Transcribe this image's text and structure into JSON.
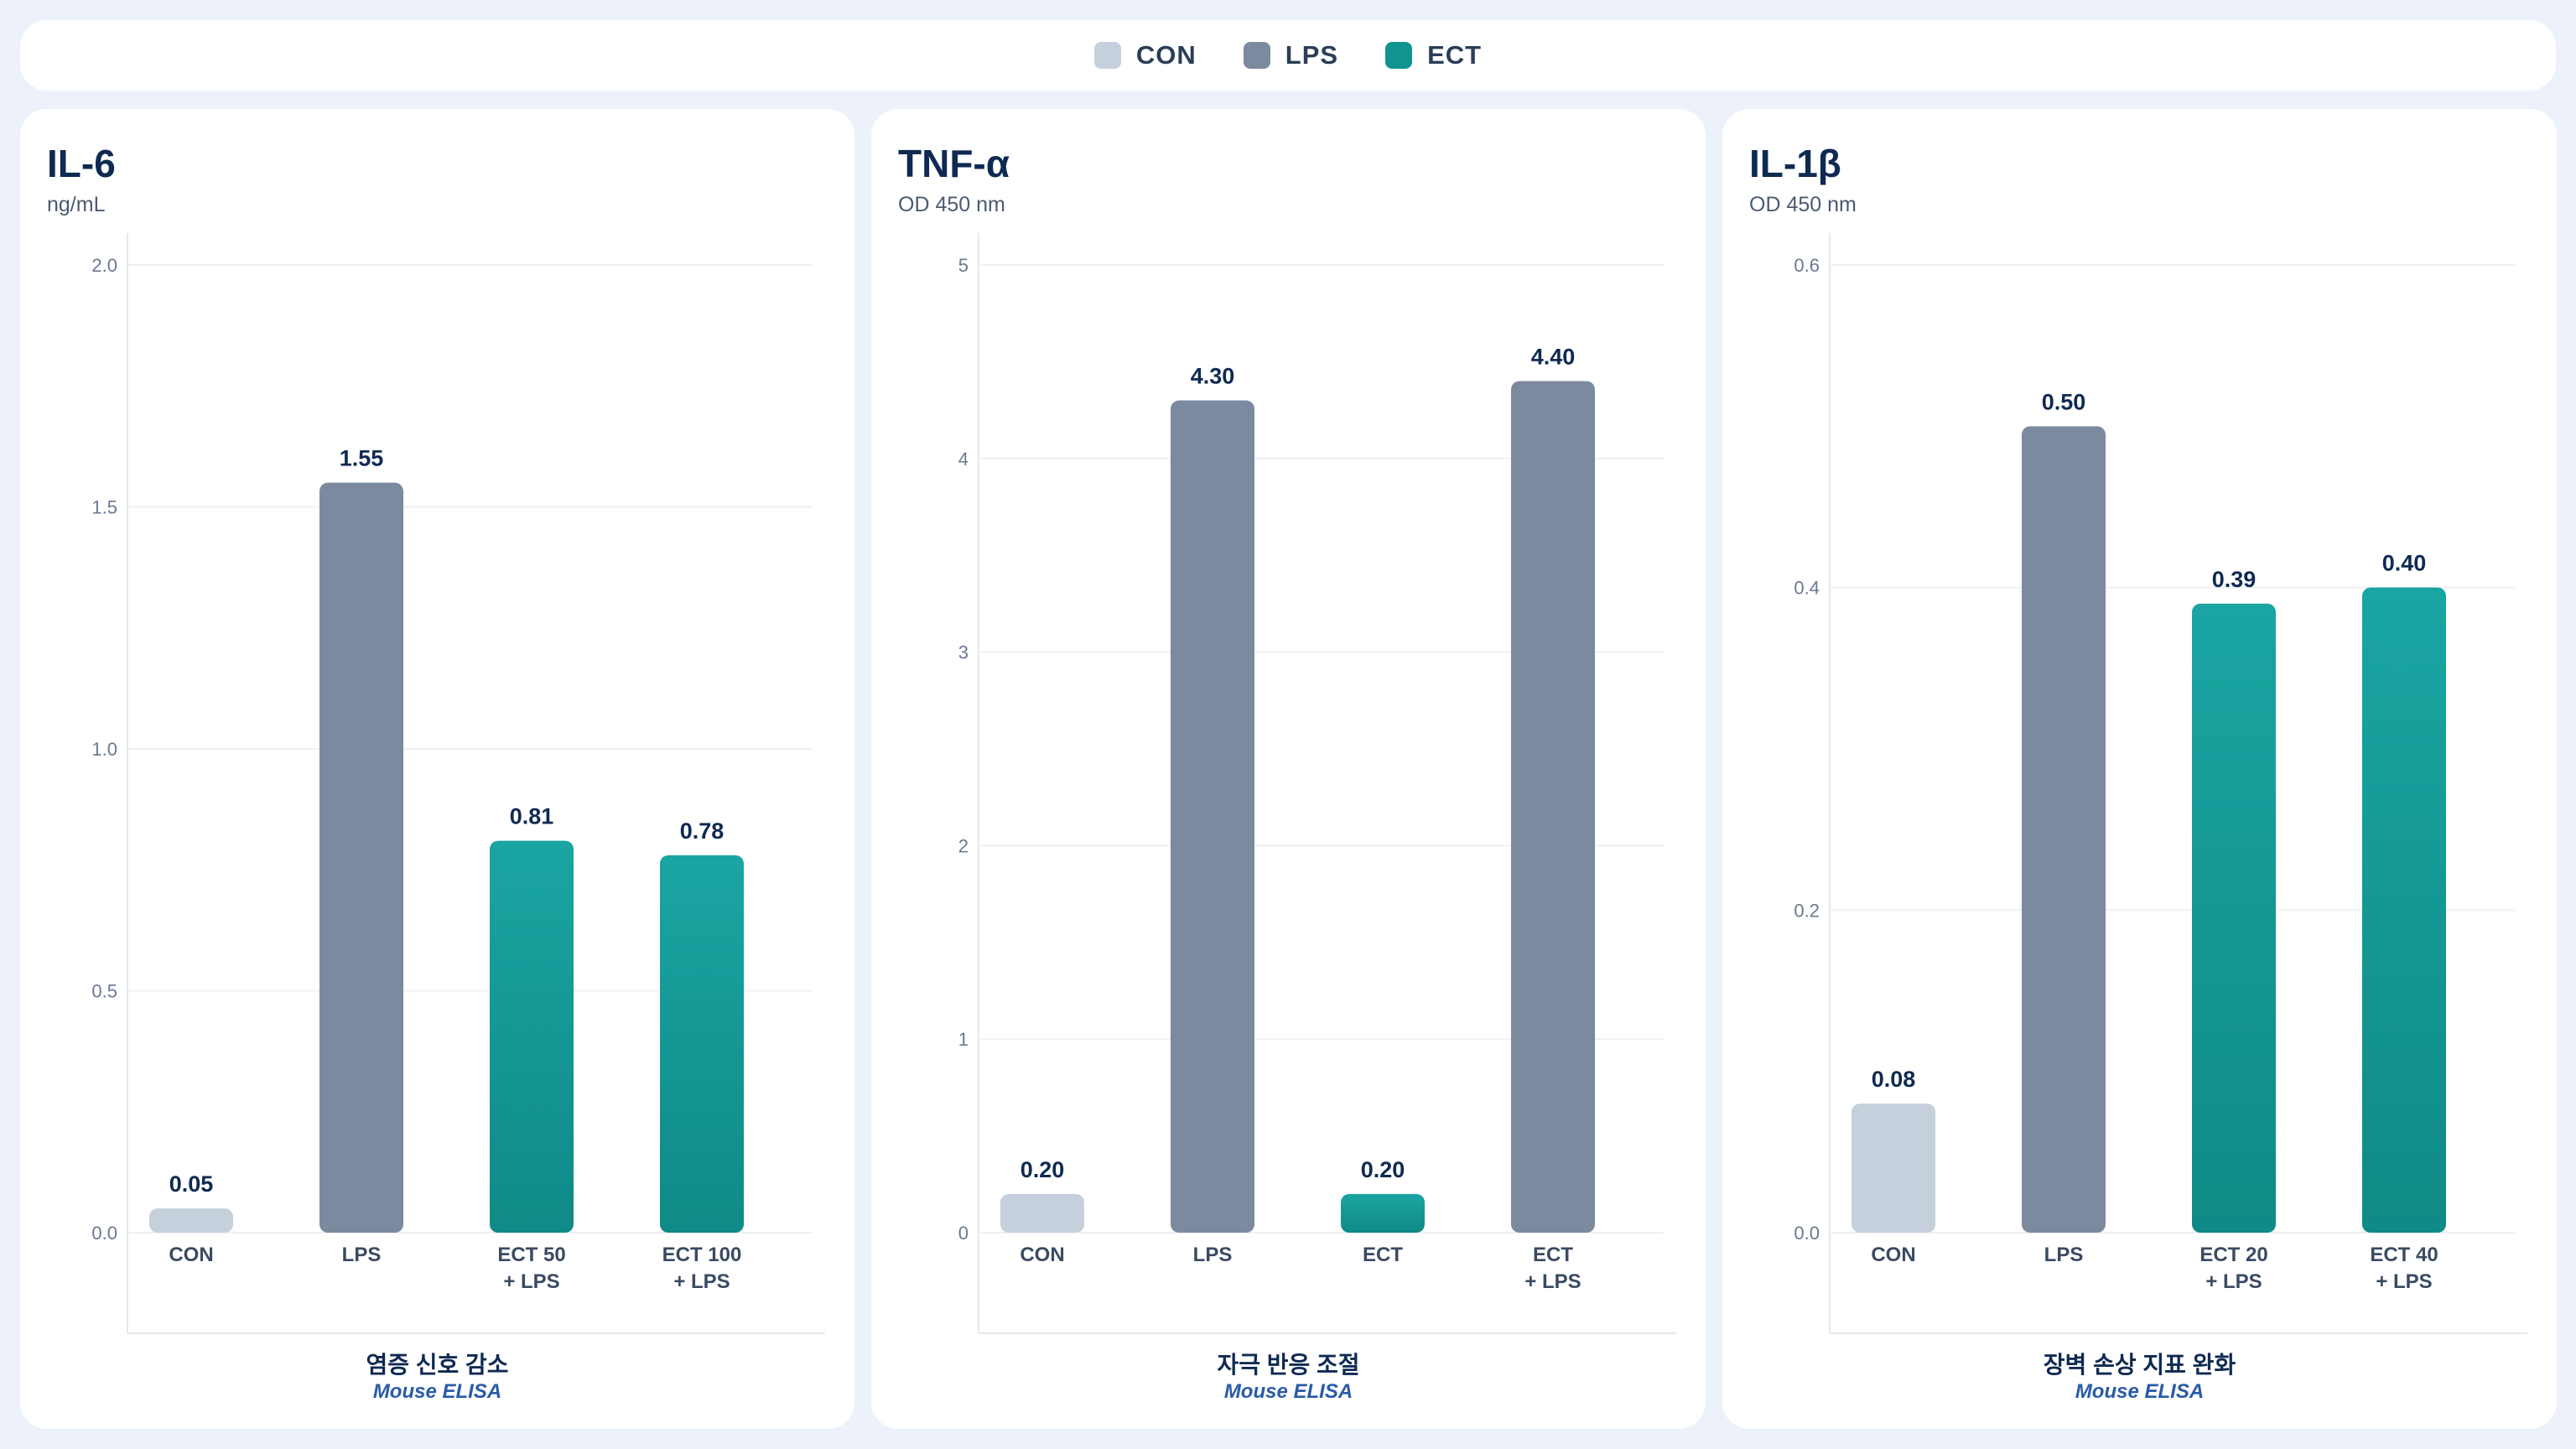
{
  "legend": [
    {
      "label": "CON",
      "color": "#c6d0dc"
    },
    {
      "label": "LPS",
      "color": "#7c8aa0"
    },
    {
      "label": "ECT",
      "color": "#119490"
    }
  ],
  "colors": {
    "CON": "#c6d0dc",
    "LPS": "#7c8aa0",
    "ECT_top": "#1aa5a2",
    "ECT_bottom": "#0f8a87"
  },
  "chart_data": [
    {
      "type": "bar",
      "title": "IL-6",
      "unit": "ng/mL",
      "caption": "염증 신호 감소",
      "subcaption": "Mouse ELISA",
      "ylim": [
        0,
        2.0
      ],
      "yticks": [
        "0.0",
        "0.5",
        "1.0",
        "1.5",
        "2.0"
      ],
      "grid": true,
      "categories": [
        [
          "CON"
        ],
        [
          "LPS"
        ],
        [
          "ECT 50",
          "+ LPS"
        ],
        [
          "ECT 100",
          "+ LPS"
        ]
      ],
      "groups": [
        "CON",
        "LPS",
        "ECT",
        "ECT"
      ],
      "values": [
        0.05,
        1.55,
        0.81,
        0.78
      ],
      "value_labels": [
        "0.05",
        "1.55",
        "0.81",
        "0.78"
      ]
    },
    {
      "type": "bar",
      "title": "TNF-α",
      "unit": "OD 450 nm",
      "caption": "자극 반응 조절",
      "subcaption": "Mouse ELISA",
      "ylim": [
        0,
        5
      ],
      "yticks": [
        "0",
        "1",
        "2",
        "3",
        "4",
        "5"
      ],
      "grid": true,
      "categories": [
        [
          "CON"
        ],
        [
          "LPS"
        ],
        [
          "ECT"
        ],
        [
          "ECT",
          "+ LPS"
        ]
      ],
      "groups": [
        "CON",
        "LPS",
        "ECT",
        "LPS"
      ],
      "values": [
        0.2,
        4.3,
        0.2,
        4.4
      ],
      "value_labels": [
        "0.20",
        "4.30",
        "0.20",
        "4.40"
      ]
    },
    {
      "type": "bar",
      "title": "IL-1β",
      "unit": "OD 450 nm",
      "caption": "장벽 손상 지표 완화",
      "subcaption": "Mouse ELISA",
      "ylim": [
        0,
        0.6
      ],
      "yticks": [
        "0.0",
        "0.2",
        "0.4",
        "0.6"
      ],
      "grid": true,
      "categories": [
        [
          "CON"
        ],
        [
          "LPS"
        ],
        [
          "ECT 20",
          "+ LPS"
        ],
        [
          "ECT 40",
          "+ LPS"
        ]
      ],
      "groups": [
        "CON",
        "LPS",
        "ECT",
        "ECT"
      ],
      "values": [
        0.08,
        0.5,
        0.39,
        0.4
      ],
      "value_labels": [
        "0.08",
        "0.50",
        "0.39",
        "0.40"
      ]
    }
  ]
}
